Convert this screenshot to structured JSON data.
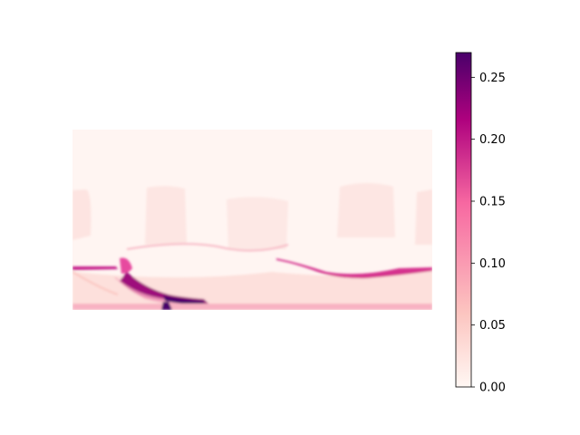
{
  "chart_data": {
    "type": "heatmap",
    "title": "",
    "xlabel": "",
    "ylabel": "",
    "axes_visible": false,
    "colormap": "RdPu",
    "colors": {
      "low": "#fff7f3",
      "mid_low": "#fcc5c0",
      "mid": "#f768a1",
      "mid_high": "#ae017e",
      "high": "#49006a"
    },
    "colorbar": {
      "vmin": 0.0,
      "vmax": 0.27,
      "ticks": [
        0.0,
        0.05,
        0.1,
        0.15,
        0.2,
        0.25
      ],
      "tick_labels": [
        "0.00",
        "0.05",
        "0.10",
        "0.15",
        "0.20",
        "0.25"
      ]
    },
    "value_regions": [
      {
        "region": "upper background",
        "approx_value": 0.01
      },
      {
        "region": "block silhouettes",
        "approx_value": 0.03
      },
      {
        "region": "lower band",
        "approx_value": 0.06
      },
      {
        "region": "long ridge (right)",
        "approx_value": 0.17
      },
      {
        "region": "bottom-left curved feature",
        "approx_value": 0.22
      },
      {
        "region": "bottom-left spike",
        "approx_value": 0.27
      }
    ]
  }
}
